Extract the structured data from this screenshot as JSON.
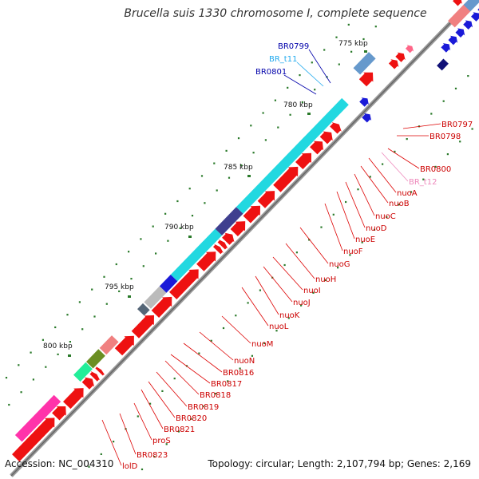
{
  "title": "Brucella suis 1330 chromosome I, complete sequence",
  "footer": {
    "accession": "Accession: NC_004310",
    "topology": "Topology: circular; Length: 2,107,794 bp; Genes: 2,169"
  },
  "ticks": [
    "775 kbp",
    "780 kbp",
    "785 kbp",
    "790 kbp",
    "795 kbp",
    "800 kbp"
  ],
  "colors": {
    "cds": "#ee1111",
    "operon": "#22d8e0",
    "outer_blue": "#1a1ad8",
    "backbone": "#888888",
    "dots": "#2a7a2a",
    "label_red": "#cc0000",
    "label_blue": "#0000aa",
    "label_lightblue": "#22aaee",
    "label_pink": "#ee88bb"
  },
  "labels_left": [
    "BR0799",
    "BR_t11",
    "BR0801"
  ],
  "labels_right": [
    "BR0797",
    "BR0798",
    "BR0800",
    "BR_t12",
    "nuoA",
    "nuoB",
    "nuoC",
    "nuoD",
    "nuoE",
    "nuoF",
    "nuoG",
    "nuoH",
    "nuoI",
    "nuoJ",
    "nuoK",
    "nuoL",
    "nuoM",
    "nuoN",
    "BR0816",
    "BR0817",
    "BR0818",
    "BR0819",
    "BR0820",
    "BR0821",
    "proS",
    "BR0823",
    "lolD"
  ]
}
